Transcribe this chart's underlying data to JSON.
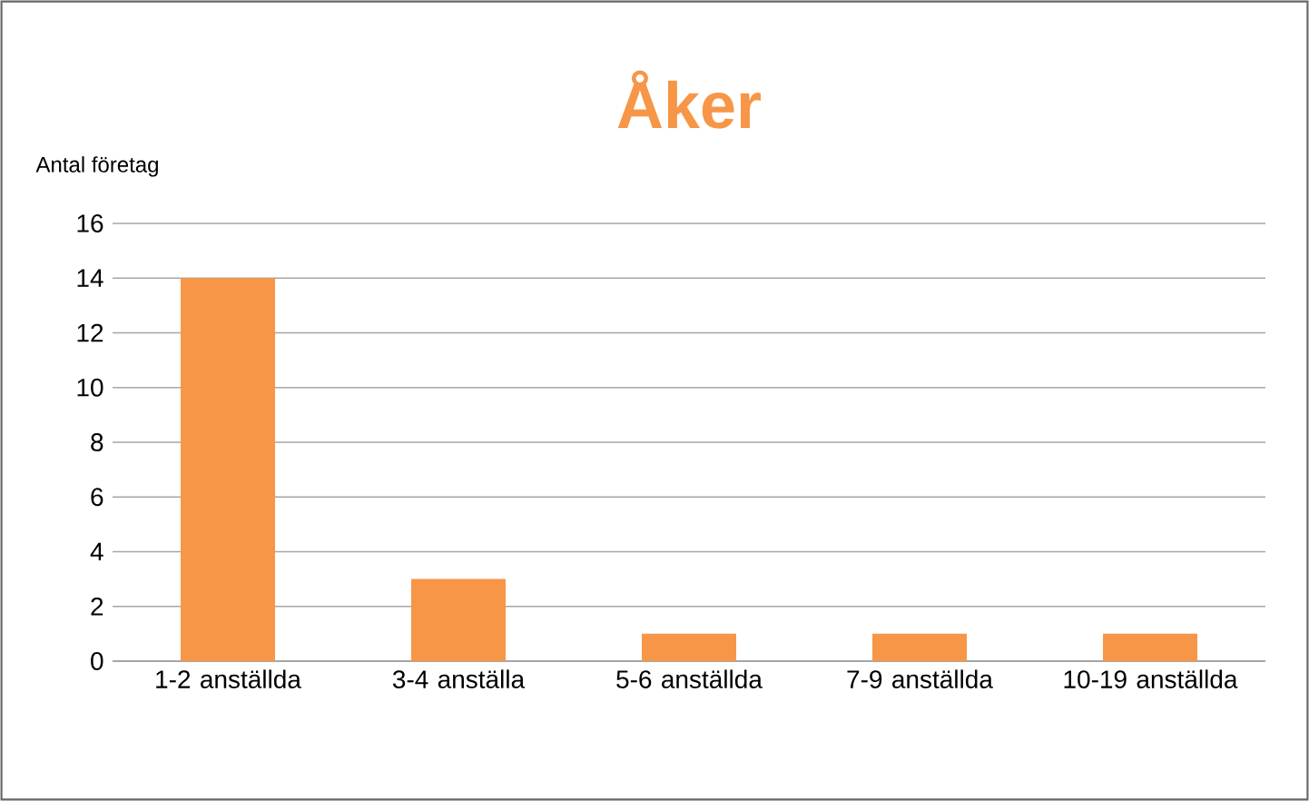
{
  "chart_data": {
    "type": "bar",
    "title": "Åker",
    "ylabel": "Antal företag",
    "categories": [
      "1-2 anställda",
      "3-4 anställa",
      "5-6 anställda",
      "7-9 anställda",
      "10-19 anställda"
    ],
    "values": [
      14,
      3,
      1,
      1,
      1
    ],
    "color": "#f79646",
    "ylim": [
      0,
      16
    ],
    "yticks": [
      0,
      2,
      4,
      6,
      8,
      10,
      12,
      14,
      16
    ],
    "grid": "y"
  }
}
